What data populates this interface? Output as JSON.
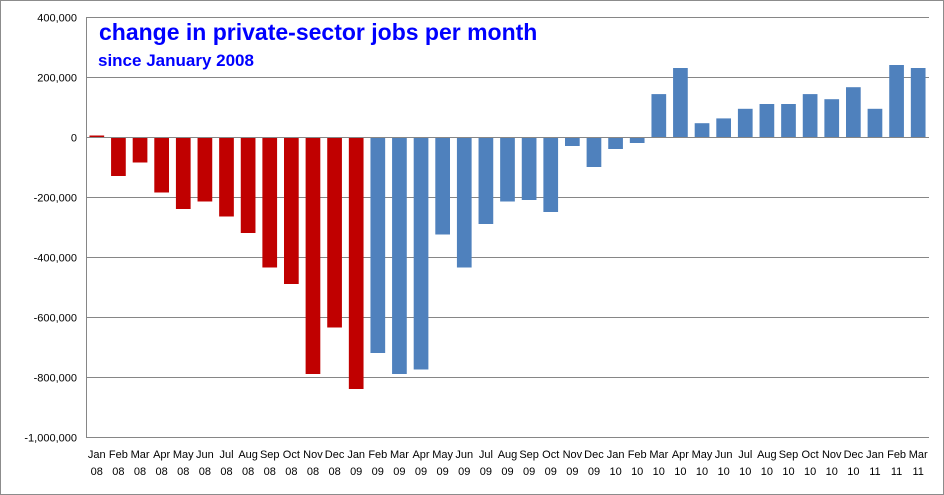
{
  "chart_data": {
    "type": "bar",
    "title": "change in private-sector jobs per month",
    "subtitle": "since January 2008",
    "xlabel": "",
    "ylabel": "",
    "ylim": [
      -1000000,
      400000
    ],
    "yticks": [
      400000,
      200000,
      0,
      -200000,
      -400000,
      -600000,
      -800000,
      -1000000
    ],
    "ytick_labels": [
      "400,000",
      "200,000",
      "0",
      "-200,000",
      "-400,000",
      "-600,000",
      "-800,000",
      "-1,000,000"
    ],
    "grid": true,
    "legend": "none",
    "categories": [
      [
        "Jan",
        "08"
      ],
      [
        "Feb",
        "08"
      ],
      [
        "Mar",
        "08"
      ],
      [
        "Apr",
        "08"
      ],
      [
        "May",
        "08"
      ],
      [
        "Jun",
        "08"
      ],
      [
        "Jul",
        "08"
      ],
      [
        "Aug",
        "08"
      ],
      [
        "Sep",
        "08"
      ],
      [
        "Oct",
        "08"
      ],
      [
        "Nov",
        "08"
      ],
      [
        "Dec",
        "08"
      ],
      [
        "Jan",
        "09"
      ],
      [
        "Feb",
        "09"
      ],
      [
        "Mar",
        "09"
      ],
      [
        "Apr",
        "09"
      ],
      [
        "May",
        "09"
      ],
      [
        "Jun",
        "09"
      ],
      [
        "Jul",
        "09"
      ],
      [
        "Aug",
        "09"
      ],
      [
        "Sep",
        "09"
      ],
      [
        "Oct",
        "09"
      ],
      [
        "Nov",
        "09"
      ],
      [
        "Dec",
        "09"
      ],
      [
        "Jan",
        "10"
      ],
      [
        "Feb",
        "10"
      ],
      [
        "Mar",
        "10"
      ],
      [
        "Apr",
        "10"
      ],
      [
        "May",
        "10"
      ],
      [
        "Jun",
        "10"
      ],
      [
        "Jul",
        "10"
      ],
      [
        "Aug",
        "10"
      ],
      [
        "Sep",
        "10"
      ],
      [
        "Oct",
        "10"
      ],
      [
        "Nov",
        "10"
      ],
      [
        "Dec",
        "10"
      ],
      [
        "Jan",
        "11"
      ],
      [
        "Feb",
        "11"
      ],
      [
        "Mar",
        "11"
      ]
    ],
    "values": [
      5000,
      -130000,
      -85000,
      -185000,
      -240000,
      -215000,
      -265000,
      -320000,
      -435000,
      -490000,
      -790000,
      -635000,
      -840000,
      -720000,
      -790000,
      -775000,
      -325000,
      -435000,
      -290000,
      -215000,
      -210000,
      -250000,
      -30000,
      -100000,
      -40000,
      -20000,
      143000,
      230000,
      46000,
      62000,
      94000,
      110000,
      110000,
      143000,
      126000,
      166000,
      94000,
      240000,
      230000
    ],
    "bar_colors": [
      "#c00000",
      "#c00000",
      "#c00000",
      "#c00000",
      "#c00000",
      "#c00000",
      "#c00000",
      "#c00000",
      "#c00000",
      "#c00000",
      "#c00000",
      "#c00000",
      "#c00000",
      "#4f81bd",
      "#4f81bd",
      "#4f81bd",
      "#4f81bd",
      "#4f81bd",
      "#4f81bd",
      "#4f81bd",
      "#4f81bd",
      "#4f81bd",
      "#4f81bd",
      "#4f81bd",
      "#4f81bd",
      "#4f81bd",
      "#4f81bd",
      "#4f81bd",
      "#4f81bd",
      "#4f81bd",
      "#4f81bd",
      "#4f81bd",
      "#4f81bd",
      "#4f81bd",
      "#4f81bd",
      "#4f81bd",
      "#4f81bd",
      "#4f81bd",
      "#4f81bd"
    ]
  },
  "colors": {
    "title": "#0000ff",
    "gridline": "#868686",
    "axis": "#868686",
    "bar_red": "#c00000",
    "bar_blue": "#4f81bd"
  }
}
